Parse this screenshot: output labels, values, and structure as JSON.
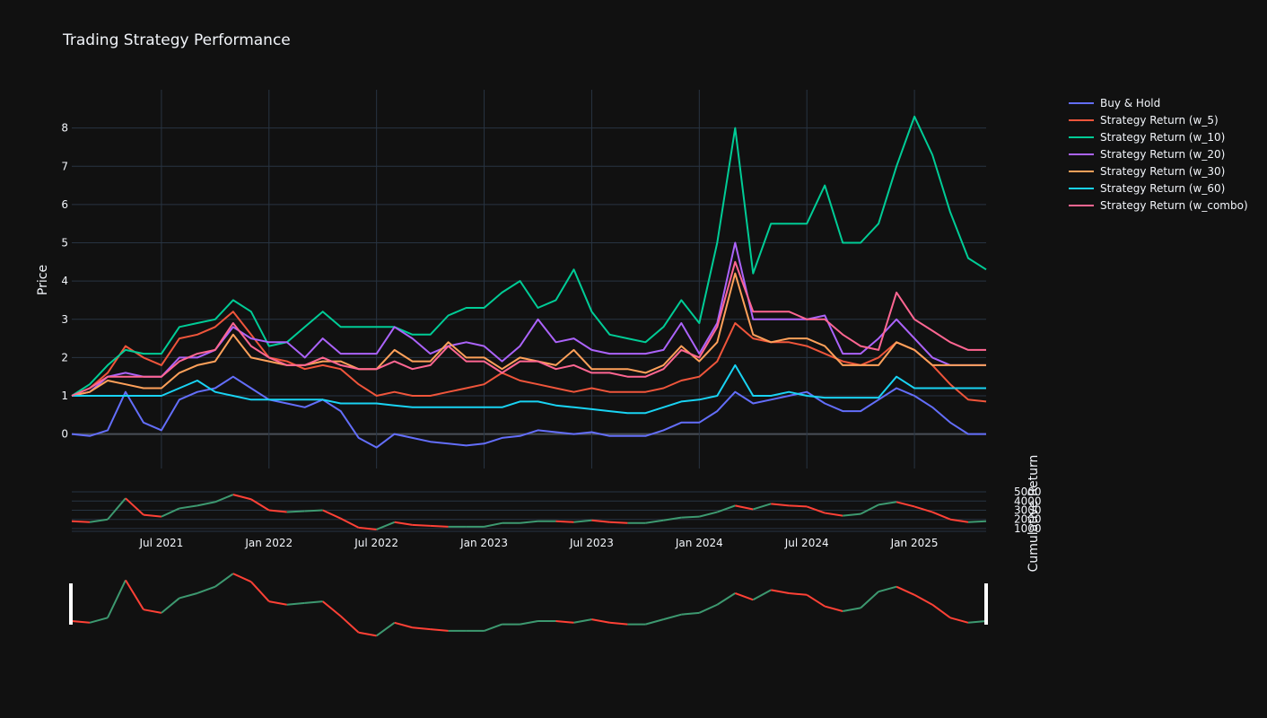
{
  "chart_data": [
    {
      "type": "line",
      "title": "Trading Strategy Performance",
      "ylabel": "Price",
      "xlabel": "",
      "ylim": [
        -0.9,
        9.0
      ],
      "yticks": [
        0,
        1,
        2,
        3,
        4,
        5,
        6,
        7,
        8
      ],
      "grid": true,
      "legend_position": "top-right",
      "x": [
        "2021-02",
        "2021-03",
        "2021-04",
        "2021-05",
        "2021-06",
        "2021-07",
        "2021-08",
        "2021-09",
        "2021-10",
        "2021-11",
        "2021-12",
        "2022-01",
        "2022-02",
        "2022-03",
        "2022-04",
        "2022-05",
        "2022-06",
        "2022-07",
        "2022-08",
        "2022-09",
        "2022-10",
        "2022-11",
        "2022-12",
        "2023-01",
        "2023-02",
        "2023-03",
        "2023-04",
        "2023-05",
        "2023-06",
        "2023-07",
        "2023-08",
        "2023-09",
        "2023-10",
        "2023-11",
        "2023-12",
        "2024-01",
        "2024-02",
        "2024-03",
        "2024-04",
        "2024-05",
        "2024-06",
        "2024-07",
        "2024-08",
        "2024-09",
        "2024-10",
        "2024-11",
        "2024-12",
        "2025-01",
        "2025-02",
        "2025-03",
        "2025-04",
        "2025-05"
      ],
      "series": [
        {
          "name": "Buy & Hold",
          "color": "#636efa",
          "values": [
            0,
            -0.05,
            0.1,
            1.1,
            0.3,
            0.1,
            0.9,
            1.1,
            1.2,
            1.5,
            1.2,
            0.9,
            0.8,
            0.7,
            0.9,
            0.6,
            -0.1,
            -0.35,
            0,
            -0.1,
            -0.2,
            -0.25,
            -0.3,
            -0.25,
            -0.1,
            -0.05,
            0.1,
            0.05,
            0,
            0.05,
            -0.05,
            -0.05,
            -0.05,
            0.1,
            0.3,
            0.3,
            0.6,
            1.1,
            0.8,
            0.9,
            1.0,
            1.1,
            0.8,
            0.6,
            0.6,
            0.9,
            1.2,
            1.0,
            0.7,
            0.3,
            0.0,
            0.0
          ]
        },
        {
          "name": "Strategy Return (w_5)",
          "color": "#ef553b",
          "values": [
            1.0,
            1.2,
            1.6,
            2.3,
            2.0,
            1.8,
            2.5,
            2.6,
            2.8,
            3.2,
            2.6,
            2.0,
            1.9,
            1.7,
            1.8,
            1.7,
            1.3,
            1.0,
            1.1,
            1.0,
            1.0,
            1.1,
            1.2,
            1.3,
            1.6,
            1.4,
            1.3,
            1.2,
            1.1,
            1.2,
            1.1,
            1.1,
            1.1,
            1.2,
            1.4,
            1.5,
            1.9,
            2.9,
            2.5,
            2.4,
            2.4,
            2.3,
            2.1,
            1.9,
            1.8,
            2.0,
            2.4,
            2.2,
            1.8,
            1.3,
            0.9,
            0.85
          ]
        },
        {
          "name": "Strategy Return (w_10)",
          "color": "#00cc96",
          "values": [
            1.0,
            1.3,
            1.8,
            2.2,
            2.1,
            2.1,
            2.8,
            2.9,
            3.0,
            3.5,
            3.2,
            2.3,
            2.4,
            2.8,
            3.2,
            2.8,
            2.8,
            2.8,
            2.8,
            2.6,
            2.6,
            3.1,
            3.3,
            3.3,
            3.7,
            4.0,
            3.3,
            3.5,
            4.3,
            3.2,
            2.6,
            2.5,
            2.4,
            2.8,
            3.5,
            2.9,
            5.0,
            8.0,
            4.2,
            5.5,
            5.5,
            5.5,
            6.5,
            5.0,
            5.0,
            5.5,
            7.0,
            8.3,
            7.3,
            5.8,
            4.6,
            4.3
          ]
        },
        {
          "name": "Strategy Return (w_20)",
          "color": "#ab63fa",
          "values": [
            1.0,
            1.1,
            1.5,
            1.6,
            1.5,
            1.5,
            2.0,
            2.0,
            2.2,
            2.8,
            2.5,
            2.4,
            2.4,
            2.0,
            2.5,
            2.1,
            2.1,
            2.1,
            2.8,
            2.5,
            2.1,
            2.3,
            2.4,
            2.3,
            1.9,
            2.3,
            3.0,
            2.4,
            2.5,
            2.2,
            2.1,
            2.1,
            2.1,
            2.2,
            2.9,
            2.1,
            2.9,
            5.0,
            3.0,
            3.0,
            3.0,
            3.0,
            3.1,
            2.1,
            2.1,
            2.5,
            3.0,
            2.5,
            2.0,
            1.8,
            1.8,
            1.8
          ]
        },
        {
          "name": "Strategy Return (w_30)",
          "color": "#ffa15a",
          "values": [
            1.0,
            1.1,
            1.4,
            1.3,
            1.2,
            1.2,
            1.6,
            1.8,
            1.9,
            2.6,
            2.0,
            1.9,
            1.8,
            1.8,
            1.9,
            1.9,
            1.7,
            1.7,
            2.2,
            1.9,
            1.9,
            2.4,
            2.0,
            2.0,
            1.7,
            2.0,
            1.9,
            1.8,
            2.2,
            1.7,
            1.7,
            1.7,
            1.6,
            1.8,
            2.3,
            1.9,
            2.4,
            4.2,
            2.6,
            2.4,
            2.5,
            2.5,
            2.3,
            1.8,
            1.8,
            1.8,
            2.4,
            2.2,
            1.8,
            1.8,
            1.8,
            1.8
          ]
        },
        {
          "name": "Strategy Return (w_60)",
          "color": "#19d3f3",
          "values": [
            1.0,
            1.0,
            1.0,
            1.0,
            1.0,
            1.0,
            1.2,
            1.4,
            1.1,
            1.0,
            0.9,
            0.9,
            0.9,
            0.9,
            0.9,
            0.8,
            0.8,
            0.8,
            0.75,
            0.7,
            0.7,
            0.7,
            0.7,
            0.7,
            0.7,
            0.85,
            0.85,
            0.75,
            0.7,
            0.65,
            0.6,
            0.55,
            0.55,
            0.7,
            0.85,
            0.9,
            1.0,
            1.8,
            1.0,
            1.0,
            1.1,
            1.0,
            0.95,
            0.95,
            0.95,
            0.95,
            1.5,
            1.2,
            1.2,
            1.2,
            1.2,
            1.2
          ]
        },
        {
          "name": "Strategy Return (w_combo)",
          "color": "#ff6692",
          "values": [
            1.0,
            1.2,
            1.5,
            1.5,
            1.5,
            1.5,
            1.9,
            2.1,
            2.2,
            2.9,
            2.3,
            2.0,
            1.8,
            1.8,
            2.0,
            1.8,
            1.7,
            1.7,
            1.9,
            1.7,
            1.8,
            2.3,
            1.9,
            1.9,
            1.6,
            1.9,
            1.9,
            1.7,
            1.8,
            1.6,
            1.6,
            1.5,
            1.5,
            1.7,
            2.2,
            2.0,
            2.8,
            4.5,
            3.2,
            3.2,
            3.2,
            3.0,
            3.0,
            2.6,
            2.3,
            2.2,
            3.7,
            3.0,
            2.7,
            2.4,
            2.2,
            2.2
          ]
        }
      ]
    },
    {
      "type": "candlestick",
      "ylabel": "Cumulative Return",
      "yticks": [
        1000,
        2000,
        3000,
        4000,
        5000
      ],
      "ylim": [
        700,
        5200
      ],
      "xticks": [
        "Jul 2021",
        "Jan 2022",
        "Jul 2022",
        "Jan 2023",
        "Jul 2023",
        "Jan 2024",
        "Jul 2024",
        "Jan 2025"
      ],
      "up_color": "#3d9970",
      "down_color": "#ff4136",
      "close": [
        1800,
        1700,
        2000,
        4300,
        2500,
        2300,
        3200,
        3500,
        3900,
        4700,
        4200,
        3000,
        2800,
        2900,
        3000,
        2100,
        1100,
        900,
        1700,
        1400,
        1300,
        1200,
        1200,
        1200,
        1600,
        1600,
        1800,
        1800,
        1700,
        1900,
        1700,
        1600,
        1600,
        1900,
        2200,
        2300,
        2800,
        3500,
        3100,
        3700,
        3500,
        3400,
        2700,
        2400,
        2600,
        3600,
        3900,
        3400,
        2800,
        2000,
        1700,
        1800
      ]
    },
    {
      "type": "candlestick",
      "role": "range-slider"
    }
  ]
}
